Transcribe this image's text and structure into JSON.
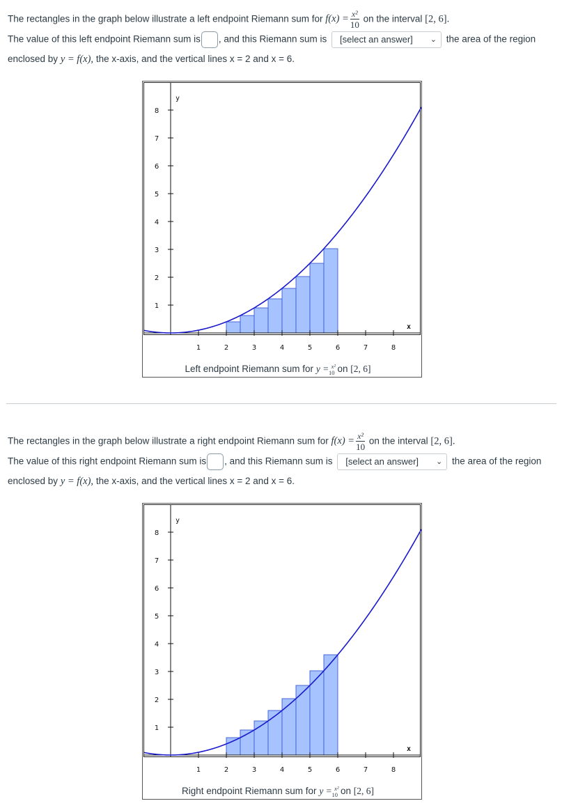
{
  "left": {
    "l1a": "The rectangles in the graph below illustrate a left endpoint Riemann sum for",
    "fx": "f(x) =",
    "num": "x²",
    "den": "10",
    "l1b": "on the interval",
    "interval": "[2, 6].",
    "l2a": "The value of this left endpoint Riemann sum is",
    "l2b": ", and this Riemann sum is",
    "select": "[select an answer]",
    "l2c": "the area of the region",
    "l3a": "enclosed by",
    "yfx": "y = f(x),",
    "l3b": "the x-axis, and the vertical lines x = 2 and x = 6.",
    "caption": "Left endpoint Riemann sum for",
    "cap_y": "y =",
    "cap_num": "x²",
    "cap_den": "10",
    "cap_on": "on",
    "cap_interval": "[2, 6]"
  },
  "right": {
    "l1a": "The rectangles in the graph below illustrate a right endpoint Riemann sum for",
    "fx": "f(x) =",
    "num": "x²",
    "den": "10",
    "l1b": "on the interval",
    "interval": "[2, 6].",
    "l2a": "The value of this right endpoint Riemann sum is",
    "l2b": ", and this Riemann sum is",
    "select": "[select an answer]",
    "l2c": "the area of the region",
    "l3a": "enclosed by",
    "yfx": "y = f(x),",
    "l3b": "the x-axis, and the vertical lines x = 2 and x = 6.",
    "caption": "Right endpoint Riemann sum for",
    "cap_y": "y =",
    "cap_num": "x²",
    "cap_den": "10",
    "cap_on": "on",
    "cap_interval": "[2, 6]"
  },
  "colors": {
    "curve": "#1a1acc",
    "rect_fill": "#a6c3ff",
    "rect_stroke": "#3b5bd6"
  },
  "chart_data": [
    {
      "type": "area",
      "function": "x^2/10",
      "method": "left",
      "interval": [
        2,
        6
      ],
      "xlim": [
        -1,
        9
      ],
      "ylim": [
        -0.5,
        9
      ],
      "ylabel": "y",
      "xlabel": "x",
      "x_ticks": [
        "1",
        "2",
        "3",
        "4",
        "5",
        "6",
        "7",
        "8"
      ],
      "y_ticks": [
        "1",
        "2",
        "3",
        "4",
        "5",
        "6",
        "7",
        "8"
      ],
      "rectangles": [
        {
          "x0": 2.0,
          "x1": 2.5,
          "height": 0.4
        },
        {
          "x0": 2.5,
          "x1": 3.0,
          "height": 0.625
        },
        {
          "x0": 3.0,
          "x1": 3.5,
          "height": 0.9
        },
        {
          "x0": 3.5,
          "x1": 4.0,
          "height": 1.225
        },
        {
          "x0": 4.0,
          "x1": 4.5,
          "height": 1.6
        },
        {
          "x0": 4.5,
          "x1": 5.0,
          "height": 2.025
        },
        {
          "x0": 5.0,
          "x1": 5.5,
          "height": 2.5
        },
        {
          "x0": 5.5,
          "x1": 6.0,
          "height": 3.025
        }
      ]
    },
    {
      "type": "area",
      "function": "x^2/10",
      "method": "right",
      "interval": [
        2,
        6
      ],
      "xlim": [
        -1,
        9
      ],
      "ylim": [
        -0.5,
        9
      ],
      "ylabel": "y",
      "xlabel": "x",
      "x_ticks": [
        "1",
        "2",
        "3",
        "4",
        "5",
        "6",
        "7",
        "8"
      ],
      "y_ticks": [
        "1",
        "2",
        "3",
        "4",
        "5",
        "6",
        "7",
        "8"
      ],
      "rectangles": [
        {
          "x0": 2.0,
          "x1": 2.5,
          "height": 0.625
        },
        {
          "x0": 2.5,
          "x1": 3.0,
          "height": 0.9
        },
        {
          "x0": 3.0,
          "x1": 3.5,
          "height": 1.225
        },
        {
          "x0": 3.5,
          "x1": 4.0,
          "height": 1.6
        },
        {
          "x0": 4.0,
          "x1": 4.5,
          "height": 2.025
        },
        {
          "x0": 4.5,
          "x1": 5.0,
          "height": 2.5
        },
        {
          "x0": 5.0,
          "x1": 5.5,
          "height": 3.025
        },
        {
          "x0": 5.5,
          "x1": 6.0,
          "height": 3.6
        }
      ]
    }
  ]
}
